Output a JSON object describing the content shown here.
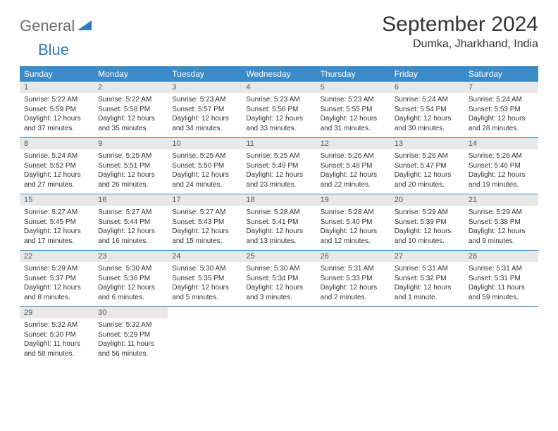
{
  "logo": {
    "part1": "General",
    "part2": "Blue"
  },
  "title": "September 2024",
  "location": "Dumka, Jharkhand, India",
  "colors": {
    "header_bg": "#3b8bc9",
    "header_text": "#ffffff",
    "daynum_bg": "#e8e8e8",
    "daynum_text": "#555555",
    "body_text": "#333333",
    "logo_gray": "#6b6b6b",
    "logo_blue": "#2f7abf",
    "row_border": "#3b8bc9",
    "page_bg": "#ffffff"
  },
  "typography": {
    "month_title_fontsize": 30,
    "location_fontsize": 16,
    "dow_fontsize": 12,
    "daynum_fontsize": 11,
    "body_fontsize": 10,
    "logo_fontsize": 22
  },
  "dow": [
    "Sunday",
    "Monday",
    "Tuesday",
    "Wednesday",
    "Thursday",
    "Friday",
    "Saturday"
  ],
  "weeks": [
    [
      {
        "n": "1",
        "sr": "Sunrise: 5:22 AM",
        "ss": "Sunset: 5:59 PM",
        "d1": "Daylight: 12 hours",
        "d2": "and 37 minutes."
      },
      {
        "n": "2",
        "sr": "Sunrise: 5:22 AM",
        "ss": "Sunset: 5:58 PM",
        "d1": "Daylight: 12 hours",
        "d2": "and 35 minutes."
      },
      {
        "n": "3",
        "sr": "Sunrise: 5:23 AM",
        "ss": "Sunset: 5:57 PM",
        "d1": "Daylight: 12 hours",
        "d2": "and 34 minutes."
      },
      {
        "n": "4",
        "sr": "Sunrise: 5:23 AM",
        "ss": "Sunset: 5:56 PM",
        "d1": "Daylight: 12 hours",
        "d2": "and 33 minutes."
      },
      {
        "n": "5",
        "sr": "Sunrise: 5:23 AM",
        "ss": "Sunset: 5:55 PM",
        "d1": "Daylight: 12 hours",
        "d2": "and 31 minutes."
      },
      {
        "n": "6",
        "sr": "Sunrise: 5:24 AM",
        "ss": "Sunset: 5:54 PM",
        "d1": "Daylight: 12 hours",
        "d2": "and 30 minutes."
      },
      {
        "n": "7",
        "sr": "Sunrise: 5:24 AM",
        "ss": "Sunset: 5:53 PM",
        "d1": "Daylight: 12 hours",
        "d2": "and 28 minutes."
      }
    ],
    [
      {
        "n": "8",
        "sr": "Sunrise: 5:24 AM",
        "ss": "Sunset: 5:52 PM",
        "d1": "Daylight: 12 hours",
        "d2": "and 27 minutes."
      },
      {
        "n": "9",
        "sr": "Sunrise: 5:25 AM",
        "ss": "Sunset: 5:51 PM",
        "d1": "Daylight: 12 hours",
        "d2": "and 26 minutes."
      },
      {
        "n": "10",
        "sr": "Sunrise: 5:25 AM",
        "ss": "Sunset: 5:50 PM",
        "d1": "Daylight: 12 hours",
        "d2": "and 24 minutes."
      },
      {
        "n": "11",
        "sr": "Sunrise: 5:25 AM",
        "ss": "Sunset: 5:49 PM",
        "d1": "Daylight: 12 hours",
        "d2": "and 23 minutes."
      },
      {
        "n": "12",
        "sr": "Sunrise: 5:26 AM",
        "ss": "Sunset: 5:48 PM",
        "d1": "Daylight: 12 hours",
        "d2": "and 22 minutes."
      },
      {
        "n": "13",
        "sr": "Sunrise: 5:26 AM",
        "ss": "Sunset: 5:47 PM",
        "d1": "Daylight: 12 hours",
        "d2": "and 20 minutes."
      },
      {
        "n": "14",
        "sr": "Sunrise: 5:26 AM",
        "ss": "Sunset: 5:46 PM",
        "d1": "Daylight: 12 hours",
        "d2": "and 19 minutes."
      }
    ],
    [
      {
        "n": "15",
        "sr": "Sunrise: 5:27 AM",
        "ss": "Sunset: 5:45 PM",
        "d1": "Daylight: 12 hours",
        "d2": "and 17 minutes."
      },
      {
        "n": "16",
        "sr": "Sunrise: 5:27 AM",
        "ss": "Sunset: 5:44 PM",
        "d1": "Daylight: 12 hours",
        "d2": "and 16 minutes."
      },
      {
        "n": "17",
        "sr": "Sunrise: 5:27 AM",
        "ss": "Sunset: 5:43 PM",
        "d1": "Daylight: 12 hours",
        "d2": "and 15 minutes."
      },
      {
        "n": "18",
        "sr": "Sunrise: 5:28 AM",
        "ss": "Sunset: 5:41 PM",
        "d1": "Daylight: 12 hours",
        "d2": "and 13 minutes."
      },
      {
        "n": "19",
        "sr": "Sunrise: 5:28 AM",
        "ss": "Sunset: 5:40 PM",
        "d1": "Daylight: 12 hours",
        "d2": "and 12 minutes."
      },
      {
        "n": "20",
        "sr": "Sunrise: 5:29 AM",
        "ss": "Sunset: 5:39 PM",
        "d1": "Daylight: 12 hours",
        "d2": "and 10 minutes."
      },
      {
        "n": "21",
        "sr": "Sunrise: 5:29 AM",
        "ss": "Sunset: 5:38 PM",
        "d1": "Daylight: 12 hours",
        "d2": "and 9 minutes."
      }
    ],
    [
      {
        "n": "22",
        "sr": "Sunrise: 5:29 AM",
        "ss": "Sunset: 5:37 PM",
        "d1": "Daylight: 12 hours",
        "d2": "and 8 minutes."
      },
      {
        "n": "23",
        "sr": "Sunrise: 5:30 AM",
        "ss": "Sunset: 5:36 PM",
        "d1": "Daylight: 12 hours",
        "d2": "and 6 minutes."
      },
      {
        "n": "24",
        "sr": "Sunrise: 5:30 AM",
        "ss": "Sunset: 5:35 PM",
        "d1": "Daylight: 12 hours",
        "d2": "and 5 minutes."
      },
      {
        "n": "25",
        "sr": "Sunrise: 5:30 AM",
        "ss": "Sunset: 5:34 PM",
        "d1": "Daylight: 12 hours",
        "d2": "and 3 minutes."
      },
      {
        "n": "26",
        "sr": "Sunrise: 5:31 AM",
        "ss": "Sunset: 5:33 PM",
        "d1": "Daylight: 12 hours",
        "d2": "and 2 minutes."
      },
      {
        "n": "27",
        "sr": "Sunrise: 5:31 AM",
        "ss": "Sunset: 5:32 PM",
        "d1": "Daylight: 12 hours",
        "d2": "and 1 minute."
      },
      {
        "n": "28",
        "sr": "Sunrise: 5:31 AM",
        "ss": "Sunset: 5:31 PM",
        "d1": "Daylight: 11 hours",
        "d2": "and 59 minutes."
      }
    ],
    [
      {
        "n": "29",
        "sr": "Sunrise: 5:32 AM",
        "ss": "Sunset: 5:30 PM",
        "d1": "Daylight: 11 hours",
        "d2": "and 58 minutes."
      },
      {
        "n": "30",
        "sr": "Sunrise: 5:32 AM",
        "ss": "Sunset: 5:29 PM",
        "d1": "Daylight: 11 hours",
        "d2": "and 56 minutes."
      },
      null,
      null,
      null,
      null,
      null
    ]
  ]
}
